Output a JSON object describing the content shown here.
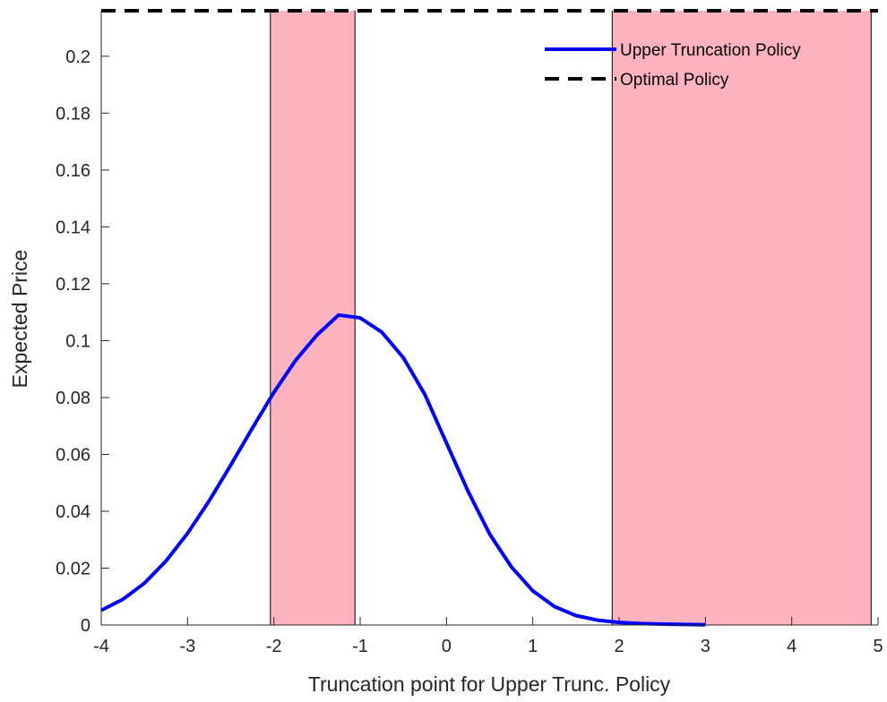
{
  "chart_data": {
    "type": "line",
    "xlabel": "Truncation point for Upper Trunc. Policy",
    "ylabel": "Expected Price",
    "xlim": [
      -4,
      5
    ],
    "ylim": [
      0,
      0.216
    ],
    "xticks": [
      -4,
      -3,
      -2,
      -1,
      0,
      1,
      2,
      3,
      4,
      5
    ],
    "yticks": [
      0,
      0.02,
      0.04,
      0.06,
      0.08,
      0.1,
      0.12,
      0.14,
      0.16,
      0.18,
      0.2
    ],
    "legend_position": "top-right",
    "shaded_regions": [
      {
        "x0": -2.04,
        "x1": -1.06,
        "color": "#ffb3bf"
      },
      {
        "x0": 1.92,
        "x1": 4.92,
        "color": "#ffb3bf"
      }
    ],
    "series": [
      {
        "name": "Upper Truncation Policy",
        "color": "#0000ff",
        "style": "solid",
        "x": [
          -4,
          -3.75,
          -3.5,
          -3.25,
          -3,
          -2.75,
          -2.5,
          -2.25,
          -2,
          -1.75,
          -1.5,
          -1.25,
          -1,
          -0.75,
          -0.5,
          -0.25,
          0,
          0.25,
          0.5,
          0.75,
          1,
          1.25,
          1.5,
          1.75,
          2,
          2.25,
          2.5,
          2.75,
          3
        ],
        "y": [
          0.0052,
          0.009,
          0.0147,
          0.0225,
          0.0322,
          0.0436,
          0.0562,
          0.0692,
          0.0818,
          0.093,
          0.102,
          0.109,
          0.108,
          0.103,
          0.094,
          0.081,
          0.064,
          0.047,
          0.032,
          0.0205,
          0.012,
          0.0065,
          0.0033,
          0.0017,
          0.0009,
          0.0005,
          0.0003,
          0.0002,
          0.0001
        ]
      },
      {
        "name": "Optimal Policy",
        "color": "#000000",
        "style": "dashed",
        "x": [
          -4,
          5
        ],
        "y": [
          0.216,
          0.216
        ]
      }
    ]
  }
}
